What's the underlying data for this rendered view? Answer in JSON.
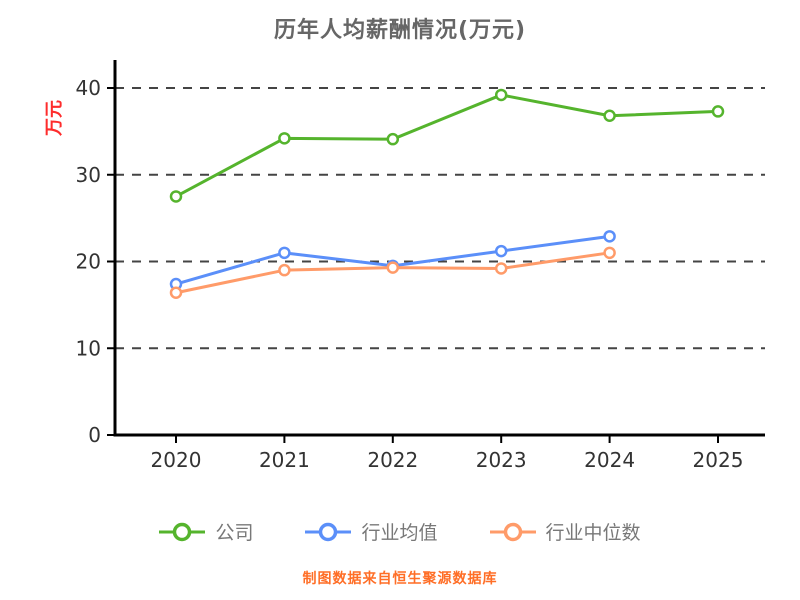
{
  "chart_data": {
    "type": "line",
    "title": "历年人均薪酬情况(万元)",
    "ylabel": "万元",
    "footer": "制图数据来自恒生聚源数据库",
    "x": [
      "2020",
      "2021",
      "2022",
      "2023",
      "2024",
      "2025"
    ],
    "ylim": [
      0,
      40
    ],
    "yticks": [
      0,
      10,
      20,
      30,
      40
    ],
    "grid": "horizontal-dashed",
    "legend_position": "bottom",
    "series": [
      {
        "name": "公司",
        "color": "#55b42d",
        "values": [
          27.5,
          34.2,
          34.1,
          39.2,
          36.8,
          37.3
        ]
      },
      {
        "name": "行业均值",
        "color": "#5b8ff9",
        "values": [
          17.4,
          21.0,
          19.5,
          21.2,
          22.9,
          null
        ]
      },
      {
        "name": "行业中位数",
        "color": "#ff9b69",
        "values": [
          16.4,
          19.0,
          19.3,
          19.2,
          21.0,
          null
        ]
      }
    ]
  },
  "colors": {
    "title": "#666666",
    "axis": "#000000",
    "grid": "#444444",
    "tick_label": "#333333",
    "ylabel": "#fe2c2c",
    "footer": "#ff6e26",
    "background": "#ffffff"
  }
}
